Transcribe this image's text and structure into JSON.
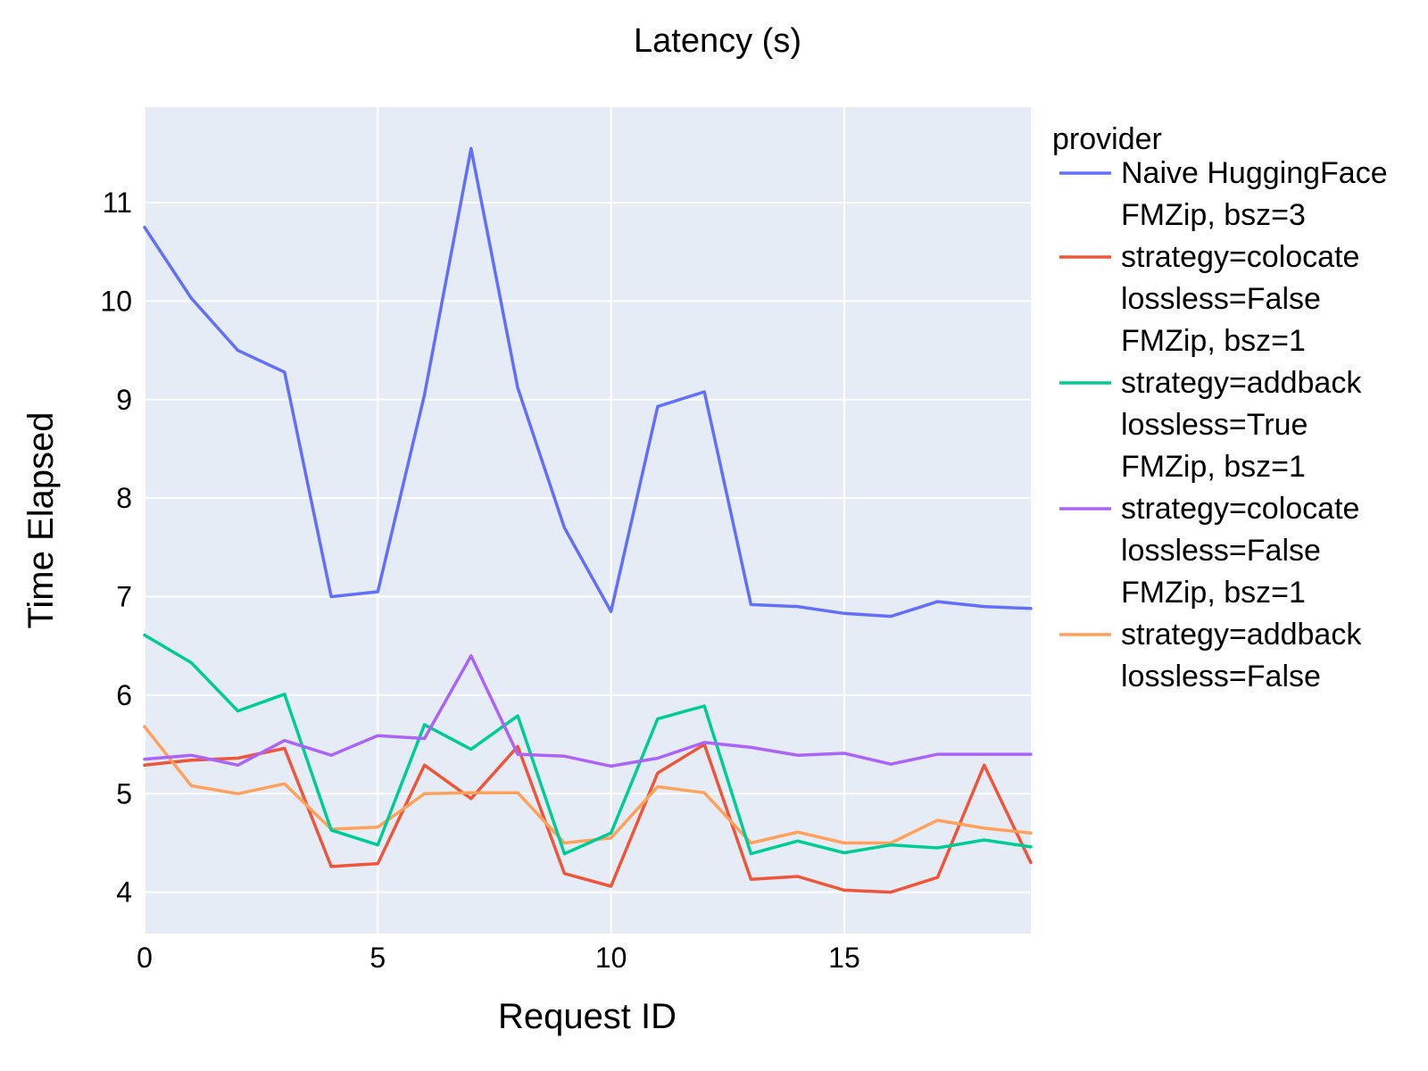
{
  "chart_data": {
    "type": "line",
    "title": "Latency (s)",
    "xlabel": "Request ID",
    "ylabel": "Time Elapsed",
    "xlim": [
      0,
      19
    ],
    "ylim": [
      3.58,
      11.97
    ],
    "xticks": [
      0,
      5,
      10,
      15
    ],
    "yticks": [
      4,
      5,
      6,
      7,
      8,
      9,
      10,
      11
    ],
    "grid": true,
    "plot_background": "#E5ECF6",
    "legend_title": "provider",
    "legend_position": "right",
    "x": [
      0,
      1,
      2,
      3,
      4,
      5,
      6,
      7,
      8,
      9,
      10,
      11,
      12,
      13,
      14,
      15,
      16,
      17,
      18,
      19
    ],
    "series": [
      {
        "name": "Naive HuggingFace",
        "label_lines": [
          "Naive HuggingFace"
        ],
        "color": "#636EFA",
        "values": [
          10.75,
          10.03,
          9.5,
          9.28,
          7.0,
          7.05,
          9.05,
          11.55,
          9.12,
          7.7,
          6.85,
          8.93,
          9.08,
          6.92,
          6.9,
          6.83,
          6.8,
          6.95,
          6.9,
          6.88
        ]
      },
      {
        "name": "FMZip, bsz=3 strategy=colocate lossless=False",
        "label_lines": [
          "FMZip, bsz=3",
          "strategy=colocate",
          "lossless=False"
        ],
        "color": "#EF553B",
        "values": [
          5.29,
          5.34,
          5.36,
          5.46,
          4.26,
          4.29,
          5.29,
          4.95,
          5.48,
          4.19,
          4.06,
          5.21,
          5.5,
          4.13,
          4.16,
          4.02,
          4.0,
          4.15,
          5.29,
          4.3
        ]
      },
      {
        "name": "FMZip, bsz=1 strategy=addback lossless=True",
        "label_lines": [
          "FMZip, bsz=1",
          "strategy=addback",
          "lossless=True"
        ],
        "color": "#00CC96",
        "values": [
          6.61,
          6.33,
          5.84,
          6.01,
          4.63,
          4.48,
          5.7,
          5.45,
          5.79,
          4.39,
          4.6,
          5.76,
          5.89,
          4.39,
          4.52,
          4.4,
          4.48,
          4.45,
          4.53,
          4.46
        ]
      },
      {
        "name": "FMZip, bsz=1 strategy=colocate lossless=False",
        "label_lines": [
          "FMZip, bsz=1",
          "strategy=colocate",
          "lossless=False"
        ],
        "color": "#AB63FA",
        "values": [
          5.35,
          5.39,
          5.29,
          5.54,
          5.39,
          5.59,
          5.56,
          6.4,
          5.4,
          5.38,
          5.28,
          5.36,
          5.52,
          5.47,
          5.39,
          5.41,
          5.3,
          5.4,
          5.4,
          5.4
        ]
      },
      {
        "name": "FMZip, bsz=1 strategy=addback lossless=False",
        "label_lines": [
          "FMZip, bsz=1",
          "strategy=addback",
          "lossless=False"
        ],
        "color": "#FFA15A",
        "values": [
          5.68,
          5.08,
          5.0,
          5.1,
          4.64,
          4.66,
          5.0,
          5.01,
          5.01,
          4.5,
          4.55,
          5.07,
          5.01,
          4.5,
          4.61,
          4.5,
          4.5,
          4.73,
          4.65,
          4.6
        ]
      }
    ]
  }
}
